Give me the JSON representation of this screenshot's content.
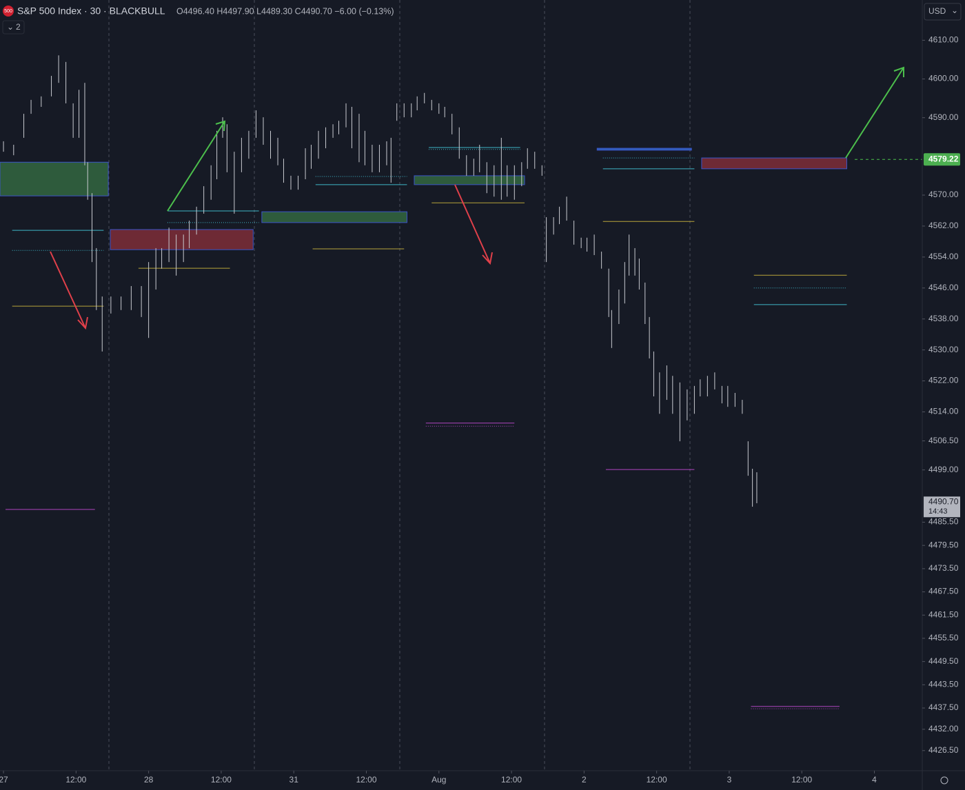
{
  "header": {
    "symbol": "S&P 500 Index · 30 · BLACKBULL",
    "ohlc": "O4496.40 H4497.90 L4489.30 C4490.70 −6.00 (−0.13%)",
    "badge": "500",
    "indicators": "2",
    "currency": "USD"
  },
  "chart_data": {
    "type": "ohlc",
    "bar_color": "#c9cbd1",
    "xlim": [
      -0.024,
      6.33
    ],
    "ylim": [
      4421.3,
      4620.4
    ],
    "xticks": [
      {
        "value": 0,
        "label": "27"
      },
      {
        "value": 0.5,
        "label": "12:00"
      },
      {
        "value": 1,
        "label": "28"
      },
      {
        "value": 1.5,
        "label": "12:00"
      },
      {
        "value": 2,
        "label": "31"
      },
      {
        "value": 2.5,
        "label": "12:00"
      },
      {
        "value": 3,
        "label": "Aug"
      },
      {
        "value": 3.5,
        "label": "12:00"
      },
      {
        "value": 4,
        "label": "2"
      },
      {
        "value": 4.5,
        "label": "12:00"
      },
      {
        "value": 5,
        "label": "3"
      },
      {
        "value": 5.5,
        "label": "12:00"
      },
      {
        "value": 6,
        "label": "4"
      }
    ],
    "yticks": [
      {
        "value": 4610,
        "label": "4610.00"
      },
      {
        "value": 4600,
        "label": "4600.00"
      },
      {
        "value": 4590,
        "label": "4590.00"
      },
      {
        "value": 4570,
        "label": "4570.00"
      },
      {
        "value": 4562,
        "label": "4562.00"
      },
      {
        "value": 4554,
        "label": "4554.00"
      },
      {
        "value": 4546,
        "label": "4546.00"
      },
      {
        "value": 4538,
        "label": "4538.00"
      },
      {
        "value": 4530,
        "label": "4530.00"
      },
      {
        "value": 4522,
        "label": "4522.00"
      },
      {
        "value": 4514,
        "label": "4514.00"
      },
      {
        "value": 4506.5,
        "label": "4506.50"
      },
      {
        "value": 4499,
        "label": "4499.00"
      },
      {
        "value": 4485.5,
        "label": "4485.50"
      },
      {
        "value": 4479.5,
        "label": "4479.50"
      },
      {
        "value": 4473.5,
        "label": "4473.50"
      },
      {
        "value": 4467.5,
        "label": "4467.50"
      },
      {
        "value": 4461.5,
        "label": "4461.50"
      },
      {
        "value": 4455.5,
        "label": "4455.50"
      },
      {
        "value": 4449.5,
        "label": "4449.50"
      },
      {
        "value": 4443.5,
        "label": "4443.50"
      },
      {
        "value": 4437.5,
        "label": "4437.50"
      },
      {
        "value": 4432,
        "label": "4432.00"
      },
      {
        "value": 4426.5,
        "label": "4426.50"
      }
    ],
    "last_price": {
      "value": 4490.7,
      "label": "4490.70",
      "time": "14:43"
    },
    "marker_price": {
      "value": 4579.22,
      "label": "4579.22"
    },
    "x": [
      0,
      0.07,
      0.14,
      0.19,
      0.26,
      0.33,
      0.38,
      0.43,
      0.48,
      0.52,
      0.56,
      0.58,
      0.61,
      0.64,
      0.68,
      0.74,
      0.81,
      0.88,
      0.95,
      1.0,
      1.05,
      1.09,
      1.14,
      1.19,
      1.24,
      1.28,
      1.33,
      1.38,
      1.43,
      1.47,
      1.51,
      1.54,
      1.59,
      1.64,
      1.69,
      1.74,
      1.79,
      1.84,
      1.89,
      1.93,
      1.98,
      2.03,
      2.08,
      2.12,
      2.17,
      2.22,
      2.27,
      2.31,
      2.36,
      2.4,
      2.45,
      2.49,
      2.54,
      2.59,
      2.64,
      2.67,
      2.71,
      2.76,
      2.81,
      2.85,
      2.9,
      2.95,
      3.0,
      3.04,
      3.09,
      3.14,
      3.19,
      3.24,
      3.28,
      3.33,
      3.38,
      3.43,
      3.47,
      3.52,
      3.57,
      3.61,
      3.66,
      3.71,
      3.74,
      3.79,
      3.83,
      3.88,
      3.93,
      3.98,
      4.02,
      4.07,
      4.12,
      4.17,
      4.19,
      4.24,
      4.28,
      4.31,
      4.35,
      4.38,
      4.42,
      4.45,
      4.48,
      4.52,
      4.57,
      4.61,
      4.66,
      4.71,
      4.76,
      4.8,
      4.85,
      4.9,
      4.95,
      4.99,
      5.04,
      5.09,
      5.13,
      5.16,
      5.19
    ],
    "high": [
      4583.9,
      4583.0,
      4591.0,
      4594.6,
      4595.5,
      4600.8,
      4606.1,
      4604.4,
      4593.7,
      4597.2,
      4599.0,
      4578.5,
      4570.5,
      4556.3,
      4543.8,
      4543.8,
      4543.8,
      4546.5,
      4546.5,
      4552.7,
      4556.3,
      4556.3,
      4561.6,
      4559.8,
      4559.8,
      4563.4,
      4567.0,
      4572.3,
      4577.7,
      4586.6,
      4590.1,
      4588.3,
      4581.2,
      4584.8,
      4586.6,
      4591.9,
      4590.1,
      4586.6,
      4584.8,
      4579.4,
      4575.0,
      4575.0,
      4582.1,
      4583.0,
      4586.6,
      4587.5,
      4588.3,
      4589.2,
      4593.7,
      4592.8,
      4591.0,
      4586.6,
      4583.0,
      4583.0,
      4583.9,
      4584.8,
      4593.7,
      4593.7,
      4593.7,
      4595.5,
      4596.4,
      4594.6,
      4593.7,
      4592.8,
      4591.0,
      4587.5,
      4580.3,
      4579.4,
      4583.0,
      4578.5,
      4577.7,
      4584.8,
      4577.7,
      4577.7,
      4578.5,
      4582.1,
      4581.2,
      4577.7,
      4564.3,
      4564.3,
      4567.0,
      4569.6,
      4563.4,
      4559.0,
      4559.0,
      4559.8,
      4555.4,
      4551.0,
      4540.3,
      4545.6,
      4552.7,
      4559.8,
      4556.3,
      4553.6,
      4547.4,
      4538.5,
      4529.6,
      4524.2,
      4526.0,
      4523.3,
      4521.6,
      4519.8,
      4520.7,
      4522.4,
      4523.3,
      4524.2,
      4520.7,
      4520.7,
      4518.9,
      4517.1,
      4506.4,
      4499.3,
      4498.4
    ],
    "low": [
      4581.2,
      4580.3,
      4584.8,
      4591.0,
      4592.8,
      4595.5,
      4599.0,
      4593.7,
      4584.8,
      4584.8,
      4577.7,
      4568.8,
      4552.7,
      4540.3,
      4529.6,
      4539.4,
      4540.3,
      4540.3,
      4538.5,
      4533.1,
      4545.6,
      4551.0,
      4552.7,
      4549.2,
      4552.7,
      4556.3,
      4559.8,
      4565.2,
      4568.8,
      4574.1,
      4584.8,
      4575.9,
      4565.2,
      4575.9,
      4579.4,
      4584.8,
      4583.0,
      4579.4,
      4577.7,
      4573.2,
      4571.4,
      4571.4,
      4574.1,
      4576.8,
      4579.4,
      4582.1,
      4584.8,
      4585.7,
      4587.5,
      4582.1,
      4578.5,
      4577.7,
      4575.9,
      4575.9,
      4577.7,
      4573.2,
      4589.2,
      4590.1,
      4590.1,
      4591.9,
      4593.7,
      4591.9,
      4591.0,
      4590.1,
      4585.7,
      4579.4,
      4575.0,
      4575.0,
      4575.9,
      4570.5,
      4569.6,
      4568.8,
      4569.6,
      4568.8,
      4572.3,
      4576.8,
      4576.8,
      4575.0,
      4552.7,
      4559.8,
      4562.5,
      4563.4,
      4557.2,
      4556.3,
      4555.4,
      4554.5,
      4551.0,
      4538.5,
      4530.5,
      4536.7,
      4542.0,
      4549.2,
      4549.2,
      4545.6,
      4536.7,
      4527.8,
      4518.0,
      4513.5,
      4517.1,
      4513.5,
      4506.4,
      4511.8,
      4513.5,
      4518.0,
      4518.0,
      4519.8,
      4516.2,
      4515.3,
      4515.3,
      4513.5,
      4497.5,
      4489.5,
      4490.4
    ],
    "zones": [
      {
        "x0": -0.024,
        "x1": 0.722,
        "top": 4578.5,
        "bottom": 4569.8,
        "fill": "#2e5b3c",
        "stroke": "#3b55c8"
      },
      {
        "x0": 0.736,
        "x1": 1.72,
        "top": 4561.1,
        "bottom": 4555.9,
        "fill": "#6e2a35",
        "stroke": "#3b55c8"
      },
      {
        "x0": 1.78,
        "x1": 2.78,
        "top": 4565.7,
        "bottom": 4562.9,
        "fill": "#2e5b3c",
        "stroke": "#3b55c8"
      },
      {
        "x0": 2.83,
        "x1": 3.59,
        "top": 4575.0,
        "bottom": 4572.7,
        "fill": "#2e5b3c",
        "stroke": "#3b55c8"
      },
      {
        "x0": 4.09,
        "x1": 4.74,
        "top": 4582.1,
        "bottom": 4581.6,
        "fill": "#2f5fb8",
        "stroke": "#3b55c8"
      },
      {
        "x0": 4.81,
        "x1": 5.81,
        "top": 4579.6,
        "bottom": 4576.8,
        "fill": "#6e2a35",
        "stroke": "#3b55c8"
      }
    ],
    "levels": [
      {
        "x0": 0.06,
        "x1": 0.69,
        "y": 4560.9,
        "color": "#3fb6c8",
        "dotted": false
      },
      {
        "x0": 0.06,
        "x1": 0.69,
        "y": 4555.7,
        "color": "#3fb6c8",
        "dotted": true
      },
      {
        "x0": 0.06,
        "x1": 0.69,
        "y": 4541.3,
        "color": "#b8a43a",
        "dotted": false
      },
      {
        "x0": 0.014,
        "x1": 0.63,
        "y": 4488.8,
        "color": "#b044c0",
        "dotted": false
      },
      {
        "x0": 0.93,
        "x1": 1.56,
        "y": 4551.1,
        "color": "#b8a43a",
        "dotted": false
      },
      {
        "x0": 1.13,
        "x1": 1.76,
        "y": 4565.9,
        "color": "#3fb6c8",
        "dotted": false
      },
      {
        "x0": 1.13,
        "x1": 1.76,
        "y": 4562.9,
        "color": "#3fb6c8",
        "dotted": true
      },
      {
        "x0": 2.13,
        "x1": 2.76,
        "y": 4556.1,
        "color": "#b8a43a",
        "dotted": false
      },
      {
        "x0": 2.15,
        "x1": 2.78,
        "y": 4572.7,
        "color": "#3fb6c8",
        "dotted": false
      },
      {
        "x0": 2.15,
        "x1": 2.78,
        "y": 4574.8,
        "color": "#3fb6c8",
        "dotted": true
      },
      {
        "x0": 2.93,
        "x1": 3.56,
        "y": 4582.3,
        "color": "#3fb6c8",
        "dotted": false
      },
      {
        "x0": 2.93,
        "x1": 3.56,
        "y": 4581.8,
        "color": "#3fb6c8",
        "dotted": true
      },
      {
        "x0": 2.95,
        "x1": 3.59,
        "y": 4568.0,
        "color": "#b8a43a",
        "dotted": false
      },
      {
        "x0": 2.91,
        "x1": 3.52,
        "y": 4511.1,
        "color": "#b044c0",
        "dotted": false
      },
      {
        "x0": 2.91,
        "x1": 3.52,
        "y": 4510.3,
        "color": "#b044c0",
        "dotted": true
      },
      {
        "x0": 4.13,
        "x1": 4.76,
        "y": 4576.8,
        "color": "#3fb6c8",
        "dotted": false
      },
      {
        "x0": 4.13,
        "x1": 4.76,
        "y": 4579.6,
        "color": "#3fb6c8",
        "dotted": true
      },
      {
        "x0": 4.13,
        "x1": 4.76,
        "y": 4563.2,
        "color": "#b8a43a",
        "dotted": false
      },
      {
        "x0": 4.15,
        "x1": 4.76,
        "y": 4499.1,
        "color": "#b044c0",
        "dotted": false
      },
      {
        "x0": 5.17,
        "x1": 5.81,
        "y": 4549.3,
        "color": "#b8a43a",
        "dotted": false
      },
      {
        "x0": 5.17,
        "x1": 5.81,
        "y": 4546.0,
        "color": "#3fb6c8",
        "dotted": true
      },
      {
        "x0": 5.17,
        "x1": 5.81,
        "y": 4541.7,
        "color": "#3fb6c8",
        "dotted": false
      },
      {
        "x0": 5.15,
        "x1": 5.76,
        "y": 4437.9,
        "color": "#b044c0",
        "dotted": false
      },
      {
        "x0": 5.15,
        "x1": 5.76,
        "y": 4437.3,
        "color": "#b044c0",
        "dotted": true
      }
    ]
  }
}
